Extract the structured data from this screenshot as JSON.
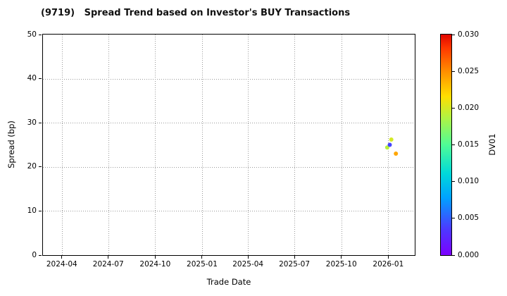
{
  "chart_data": {
    "type": "scatter",
    "title": "(9719)   Spread Trend based on Investor's BUY Transactions",
    "xlabel": "Trade Date",
    "ylabel": "Spread (bp)",
    "ylim": [
      0,
      50
    ],
    "yticks": [
      0,
      10,
      20,
      30,
      40,
      50
    ],
    "xlim": [
      "2024-02-24",
      "2026-02-22"
    ],
    "xticks": [
      {
        "label": "2024-04",
        "date": "2024-04-01"
      },
      {
        "label": "2024-07",
        "date": "2024-07-01"
      },
      {
        "label": "2024-10",
        "date": "2024-10-01"
      },
      {
        "label": "2025-01",
        "date": "2025-01-01"
      },
      {
        "label": "2025-04",
        "date": "2025-04-01"
      },
      {
        "label": "2025-07",
        "date": "2025-07-01"
      },
      {
        "label": "2025-10",
        "date": "2025-10-01"
      },
      {
        "label": "2026-01",
        "date": "2026-01-01"
      }
    ],
    "grid": true,
    "legend": "none",
    "points": [
      {
        "date": "2025-12-30",
        "spread": 24.4,
        "dv01": 0.019
      },
      {
        "date": "2026-01-04",
        "spread": 25.0,
        "dv01": 0.004
      },
      {
        "date": "2026-01-07",
        "spread": 26.2,
        "dv01": 0.02
      },
      {
        "date": "2026-01-16",
        "spread": 23.0,
        "dv01": 0.024
      }
    ],
    "colorbar": {
      "label": "DV01",
      "min": 0.0,
      "max": 0.03,
      "ticks": [
        {
          "label": "0.000",
          "value": 0.0
        },
        {
          "label": "0.005",
          "value": 0.005
        },
        {
          "label": "0.010",
          "value": 0.01
        },
        {
          "label": "0.015",
          "value": 0.015
        },
        {
          "label": "0.020",
          "value": 0.02
        },
        {
          "label": "0.025",
          "value": 0.025
        },
        {
          "label": "0.030",
          "value": 0.03
        }
      ]
    },
    "colors": {
      "spine": "#000000",
      "grid": "#999999",
      "background": "#ffffff"
    }
  }
}
